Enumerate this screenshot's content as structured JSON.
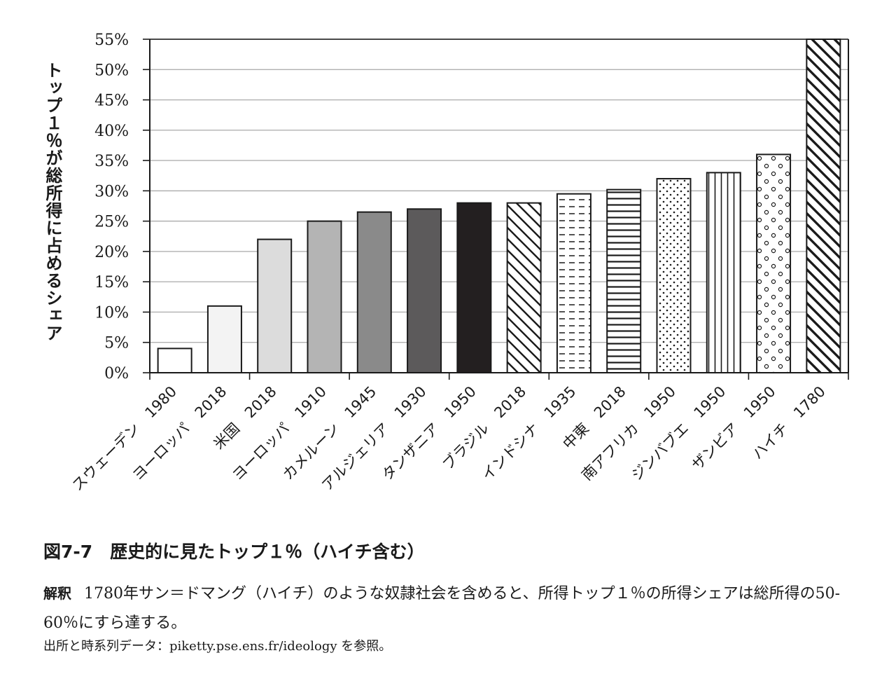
{
  "chart_data": {
    "type": "bar",
    "ylabel": "トップ１％が総所得に占めるシェア",
    "ylim": [
      0,
      55
    ],
    "yticks": [
      "0%",
      "5%",
      "10%",
      "15%",
      "20%",
      "25%",
      "30%",
      "35%",
      "40%",
      "45%",
      "50%",
      "55%"
    ],
    "grid": true,
    "categories": [
      "スウェーデン　1980",
      "ヨーロッパ　2018",
      "米国　2018",
      "ヨーロッパ　1910",
      "カメルーン　1945",
      "アルジェリア　1930",
      "タンザニア　1950",
      "ブラジル　2018",
      "インドシナ　1935",
      "中東　2018",
      "南アフリカ　1950",
      "ジンバブエ　1950",
      "ザンビア　1950",
      "ハイチ　1780"
    ],
    "values": [
      4,
      11,
      22,
      25,
      26.5,
      27,
      28,
      28,
      29.5,
      30.2,
      32,
      33,
      36,
      55
    ],
    "styles": [
      "white",
      "#f3f3f3",
      "#dcdcdc",
      "#b4b4b4",
      "#8a8a8a",
      "#5c5a5b",
      "#231f20",
      "diag",
      "dash",
      "hlines",
      "dots",
      "vlines",
      "circles",
      "diagbold"
    ]
  },
  "caption": "図7-7　歴史的に見たトップ１％（ハイチ含む）",
  "note": {
    "head": "解釈",
    "body": "1780年サン＝ドマング（ハイチ）のような奴隷社会を含めると、所得トップ１％の所得シェアは総所得の50-60％にすら達する。"
  },
  "source": "出所と時系列データ：piketty.pse.ens.fr/ideology を参照。"
}
